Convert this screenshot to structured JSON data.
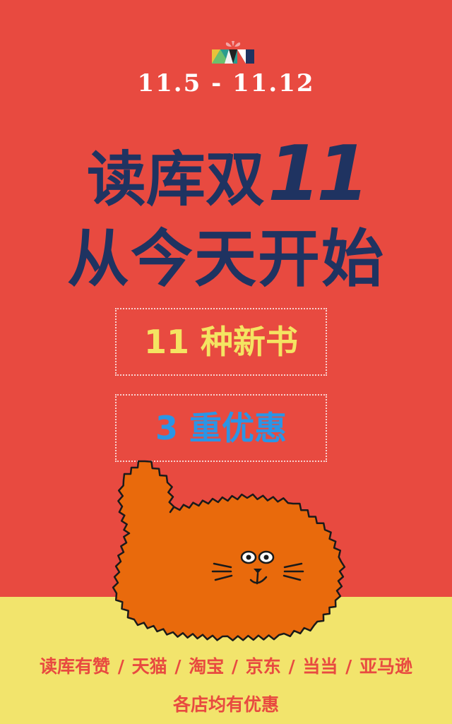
{
  "date_range": "11.5 - 11.12",
  "headline": {
    "line1_text": "读库双",
    "line1_number": "11",
    "line2": "从今天开始"
  },
  "offers": [
    {
      "text": "11 种新书"
    },
    {
      "text": "3 重优惠"
    }
  ],
  "stores": {
    "items": [
      "读库有赞",
      "天猫",
      "淘宝",
      "京东",
      "当当",
      "亚马逊"
    ],
    "separator": "/",
    "note": "各店均有优惠"
  },
  "colors": {
    "background_red": "#e84a40",
    "background_yellow": "#f2e46c",
    "headline_navy": "#1f3361",
    "offer_yellow": "#f4e462",
    "offer_blue": "#2b95e6",
    "cat_orange": "#e96a0c"
  },
  "icons": {
    "logo": "gift-box-logo",
    "illustration": "fluffy-orange-cat"
  }
}
